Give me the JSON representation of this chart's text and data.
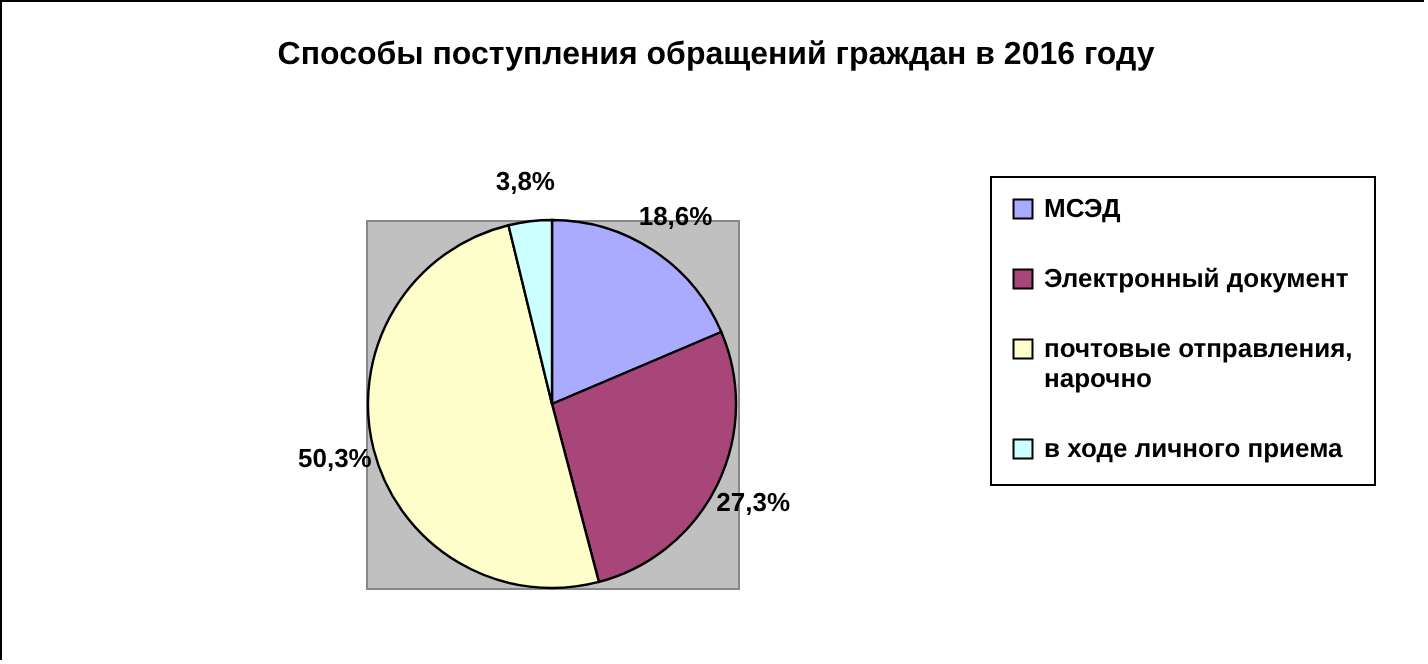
{
  "chart_data": {
    "type": "pie",
    "title": "Способы поступления обращений граждан в 2016 году",
    "categories": [
      "МСЭД",
      "Электронный документ",
      "почтовые отправления, нарочно",
      "в ходе личного приема"
    ],
    "values": [
      18.6,
      27.3,
      50.3,
      3.8
    ],
    "colors": [
      "#aaaaff",
      "#a8467a",
      "#ffffcc",
      "#ccffff"
    ],
    "value_labels": [
      "18,6%",
      "27,3%",
      "50,3%",
      "3,8%"
    ],
    "legend": "right"
  }
}
